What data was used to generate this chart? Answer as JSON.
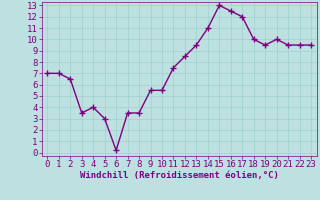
{
  "x": [
    0,
    1,
    2,
    3,
    4,
    5,
    6,
    7,
    8,
    9,
    10,
    11,
    12,
    13,
    14,
    15,
    16,
    17,
    18,
    19,
    20,
    21,
    22,
    23
  ],
  "y": [
    7.0,
    7.0,
    6.5,
    3.5,
    4.0,
    3.0,
    0.2,
    3.5,
    3.5,
    5.5,
    5.5,
    7.5,
    8.5,
    9.5,
    11.0,
    13.0,
    12.5,
    12.0,
    10.0,
    9.5,
    10.0,
    9.5,
    9.5,
    9.5
  ],
  "line_color": "#800080",
  "bg_color": "#bde0e0",
  "grid_color": "#9fcfcf",
  "xlabel": "Windchill (Refroidissement éolien,°C)",
  "xlabel_color": "#800080",
  "tick_color": "#800080",
  "ylim": [
    -0.3,
    13.3
  ],
  "xlim": [
    -0.5,
    23.5
  ],
  "yticks": [
    0,
    1,
    2,
    3,
    4,
    5,
    6,
    7,
    8,
    9,
    10,
    11,
    12,
    13
  ],
  "xticks": [
    0,
    1,
    2,
    3,
    4,
    5,
    6,
    7,
    8,
    9,
    10,
    11,
    12,
    13,
    14,
    15,
    16,
    17,
    18,
    19,
    20,
    21,
    22,
    23
  ],
  "marker": "+",
  "linewidth": 1.0,
  "markersize": 4,
  "tick_fontsize": 6.5,
  "xlabel_fontsize": 6.5
}
